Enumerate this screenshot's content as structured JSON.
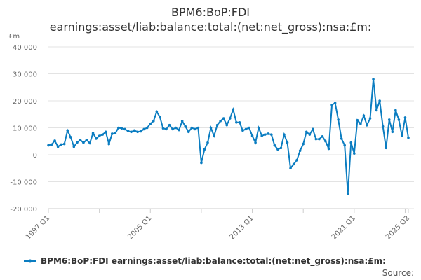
{
  "title_line1": "BPM6:BoP:FDI",
  "title_line2": "earnings:asset/liab:balance:total:(net:net_gross):nsa:£m:",
  "source_label": "Source:",
  "chart_data": {
    "type": "line",
    "unit_label": "£m",
    "y_ticks": [
      "40 000",
      "30 000",
      "20 000",
      "10 000",
      "0",
      "-10 000",
      "-20 000"
    ],
    "y_tick_values": [
      40000,
      30000,
      20000,
      10000,
      0,
      -10000,
      -20000
    ],
    "ylim": [
      -20000,
      40000
    ],
    "x_tick_labels": [
      "1997 Q1",
      "2005 Q1",
      "2013 Q1",
      "2021 Q1",
      "2025 Q2"
    ],
    "x_start": "1997 Q1",
    "x_end": "2025 Q2",
    "grid": true,
    "legend_position": "bottom",
    "color": "#0b7dc1",
    "series": [
      {
        "name": "BPM6:BoP:FDI earnings:asset/liab:balance:total:(net:net_gross):nsa:£m:",
        "values": [
          3500,
          3800,
          5200,
          3000,
          3800,
          4000,
          9000,
          6500,
          3000,
          4500,
          5500,
          4500,
          5500,
          4300,
          8000,
          6000,
          7000,
          7500,
          8500,
          4000,
          7800,
          8000,
          10000,
          9800,
          9500,
          8800,
          8500,
          9000,
          8500,
          8700,
          9500,
          10000,
          11500,
          12500,
          16000,
          14000,
          9800,
          9500,
          11000,
          9500,
          10000,
          9200,
          12500,
          10500,
          8500,
          10000,
          9500,
          10000,
          -3000,
          2000,
          4500,
          10000,
          7000,
          11000,
          12500,
          13500,
          11000,
          13500,
          16800,
          12000,
          12000,
          9000,
          9500,
          10000,
          7000,
          4500,
          10000,
          7000,
          7500,
          7800,
          7500,
          3500,
          2000,
          2500,
          7500,
          4500,
          -5000,
          -3500,
          -2000,
          1500,
          4000,
          8500,
          7500,
          9500,
          5800,
          5800,
          6800,
          5000,
          2200,
          18500,
          19200,
          13000,
          6000,
          3500,
          -14500,
          4500,
          500,
          12800,
          11500,
          14500,
          11000,
          13500,
          28000,
          16500,
          20000,
          10500,
          2500,
          13000,
          8500,
          16500,
          13000,
          7000,
          13800,
          6300
        ]
      }
    ]
  }
}
